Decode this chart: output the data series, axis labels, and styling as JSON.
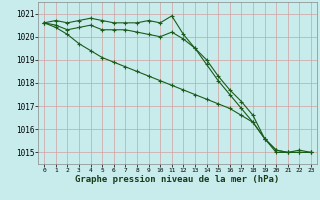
{
  "title": "Graphe pression niveau de la mer (hPa)",
  "background_color": "#c8ecec",
  "grid_color": "#b0c8c8",
  "line_color": "#1a5c1a",
  "hours": [
    0,
    1,
    2,
    3,
    4,
    5,
    6,
    7,
    8,
    9,
    10,
    11,
    12,
    13,
    14,
    15,
    16,
    17,
    18,
    19,
    20,
    21,
    22,
    23
  ],
  "series1": [
    1020.6,
    1020.7,
    1020.6,
    1020.7,
    1020.8,
    1020.7,
    1020.6,
    1020.6,
    1020.6,
    1020.7,
    1020.6,
    1020.9,
    1020.1,
    1019.5,
    1019.0,
    1018.3,
    1017.7,
    1017.2,
    1016.6,
    1015.6,
    1015.0,
    1015.0,
    1015.1,
    1015.0
  ],
  "series2": [
    1020.6,
    1020.5,
    1020.3,
    1020.4,
    1020.5,
    1020.3,
    1020.3,
    1020.3,
    1020.2,
    1020.1,
    1020.0,
    1020.2,
    1019.9,
    1019.5,
    1018.8,
    1018.1,
    1017.5,
    1016.9,
    1016.3,
    1015.6,
    1015.1,
    1015.0,
    1015.0,
    1015.0
  ],
  "series3": [
    1020.6,
    1020.4,
    1020.1,
    1019.7,
    1019.4,
    1019.1,
    1018.9,
    1018.7,
    1018.5,
    1018.3,
    1018.1,
    1017.9,
    1017.7,
    1017.5,
    1017.3,
    1017.1,
    1016.9,
    1016.6,
    1016.3,
    1015.6,
    1015.1,
    1015.0,
    1015.0,
    1015.0
  ],
  "ylim": [
    1014.5,
    1021.5
  ],
  "yticks": [
    1015,
    1016,
    1017,
    1018,
    1019,
    1020,
    1021
  ],
  "xticks": [
    0,
    1,
    2,
    3,
    4,
    5,
    6,
    7,
    8,
    9,
    10,
    11,
    12,
    13,
    14,
    15,
    16,
    17,
    18,
    19,
    20,
    21,
    22,
    23
  ]
}
